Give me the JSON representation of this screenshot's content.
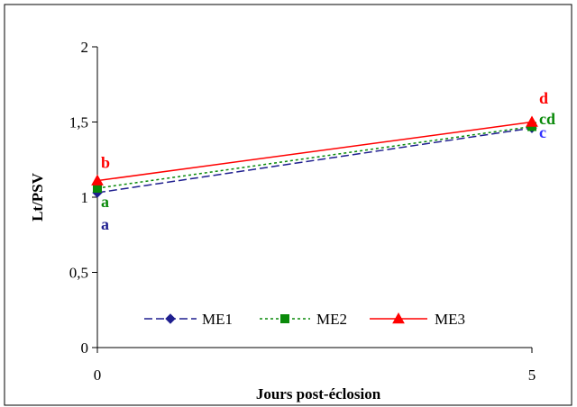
{
  "chart_data": {
    "type": "line",
    "title": "",
    "xlabel": "Jours post-éclosion",
    "ylabel": "Lt/PSV",
    "x": [
      0,
      5
    ],
    "x_tick_labels": [
      "0",
      "5"
    ],
    "ylim": [
      0,
      2
    ],
    "y_ticks": [
      0,
      0.5,
      1,
      1.5,
      2
    ],
    "y_tick_labels": [
      "0",
      "0,5",
      "1",
      "1,5",
      "2"
    ],
    "grid": false,
    "legend_position": "bottom-center",
    "series": [
      {
        "name": "ME1",
        "values": [
          1.03,
          1.46
        ],
        "color": "#1f1f8f",
        "marker": "diamond",
        "dash": "long-dash"
      },
      {
        "name": "ME2",
        "values": [
          1.06,
          1.47
        ],
        "color": "#0a8a0a",
        "marker": "square",
        "dash": "dotted"
      },
      {
        "name": "ME3",
        "values": [
          1.11,
          1.5
        ],
        "color": "#ff0000",
        "marker": "triangle",
        "dash": "solid"
      }
    ],
    "annotations": [
      {
        "text": "b",
        "x": 0,
        "y": 1.23,
        "color": "#ff0000"
      },
      {
        "text": "a",
        "x": 0,
        "y": 0.97,
        "color": "#0a8a0a"
      },
      {
        "text": "a",
        "x": 0,
        "y": 0.82,
        "color": "#1f1f8f"
      },
      {
        "text": "d",
        "x": 5,
        "y": 1.66,
        "color": "#ff0000"
      },
      {
        "text": "cd",
        "x": 5,
        "y": 1.52,
        "color": "#0a8a0a"
      },
      {
        "text": "c",
        "x": 5,
        "y": 1.43,
        "color": "#3333ff"
      }
    ]
  }
}
